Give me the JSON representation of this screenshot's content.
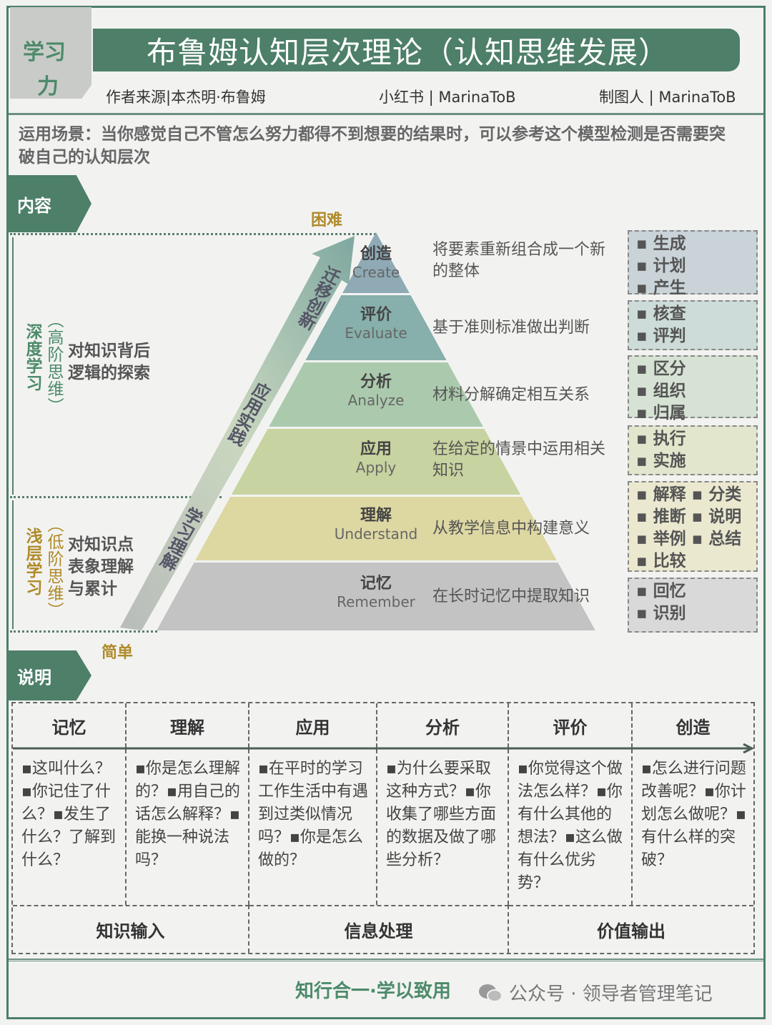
{
  "header": {
    "tag": [
      "学习",
      "力"
    ],
    "title": "布鲁姆认知层次理论（认知思维发展）",
    "author": "作者来源|本杰明·布鲁姆",
    "xhs": "小红书 | MarinaToB",
    "maker": "制图人 | MarinaToB"
  },
  "usage": "运用场景：当你感觉自己不管怎么努力都得不到想要的结果时，可以参考这个模型检测是否需要突破自己的认知层次",
  "sections": {
    "content": "内容",
    "explain": "说明"
  },
  "axis": {
    "hard": "困难",
    "easy": "简单"
  },
  "left": {
    "deep": {
      "title": "深度学习",
      "sub": "（高阶思维）",
      "desc": [
        "对知识背后",
        "逻辑的探索"
      ]
    },
    "shallow": {
      "title": "浅层学习",
      "sub": "（低阶思维）",
      "desc": [
        "对知识点",
        "表象理解",
        "与累计"
      ]
    }
  },
  "arrow_labels": [
    "迁移创新",
    "应用实践",
    "学习理解"
  ],
  "levels": [
    {
      "cn": "创造",
      "en": "Create",
      "desc": "将要素重新组合成一个新的整体",
      "tags": [
        "▪ 生成",
        "▪ 计划",
        "▪ 产生"
      ],
      "color": "#8faab5",
      "tagcolor": "#c9d3d8"
    },
    {
      "cn": "评价",
      "en": "Evaluate",
      "desc": "基于准则标准做出判断",
      "tags": [
        "▪ 核查",
        "▪ 评判"
      ],
      "color": "#87afab",
      "tagcolor": "#cddcd8"
    },
    {
      "cn": "分析",
      "en": "Analyze",
      "desc": "材料分解确定相互关系",
      "tags": [
        "▪ 区分",
        "▪ 组织",
        "▪ 归属"
      ],
      "color": "#abcaad",
      "tagcolor": "#d6e3d4"
    },
    {
      "cn": "应用",
      "en": "Apply",
      "desc": "在给定的情景中运用相关知识",
      "tags": [
        "▪ 执行",
        "▪ 实施"
      ],
      "color": "#c7d3a0",
      "tagcolor": "#e1e6cd"
    },
    {
      "cn": "理解",
      "en": "Understand",
      "desc": "从教学信息中构建意义",
      "tags": [
        "▪ 解释 ▪ 分类",
        "▪ 推断 ▪ 说明",
        "▪ 举例 ▪ 总结",
        "▪ 比较"
      ],
      "color": "#ddd7a2",
      "tagcolor": "#ebe8d0"
    },
    {
      "cn": "记忆",
      "en": "Remember",
      "desc": "在长时记忆中提取知识",
      "tags": [
        "▪ 回忆",
        "▪ 识别"
      ],
      "color": "#c3c3c3",
      "tagcolor": "#d9d9d9"
    }
  ],
  "table": {
    "headers": [
      "记忆",
      "理解",
      "应用",
      "分析",
      "评价",
      "创造"
    ],
    "cells": [
      "▪这叫什么？▪你记住了什么？▪发生了什么？了解到什么？",
      "▪你是怎么理解的？▪用自己的话怎么解释？▪能换一种说法吗？",
      "▪在平时的学习工作生活中有遇到过类似情况吗？▪你是怎么做的？",
      "▪为什么要采取这种方式？▪你收集了哪些方面的数据及做了哪些分析？",
      "▪你觉得这个做法怎么样？▪你有什么其他的想法？▪这么做有什么优劣势？",
      "▪怎么进行问题改善呢？▪你计划怎么做呢？▪有什么样的突破？"
    ],
    "footer": [
      "知识输入",
      "信息处理",
      "价值输出"
    ]
  },
  "footer": {
    "slogan": "知行合一·学以致用",
    "wechat": "公众号 · 领导者管理笔记"
  },
  "colors": {
    "green": "#4d7f69",
    "olive": "#b08a2a"
  }
}
